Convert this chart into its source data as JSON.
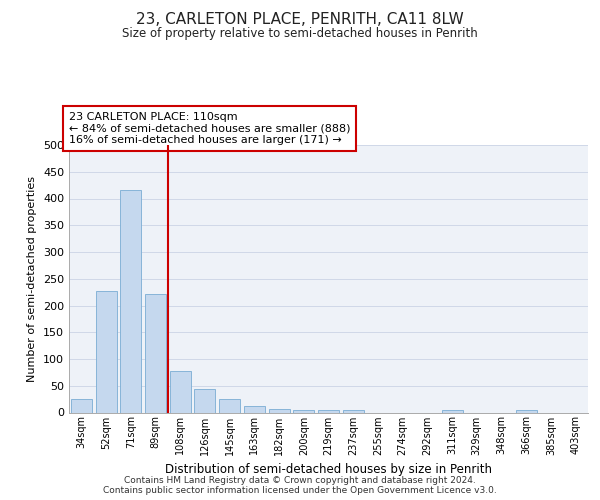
{
  "title": "23, CARLETON PLACE, PENRITH, CA11 8LW",
  "subtitle": "Size of property relative to semi-detached houses in Penrith",
  "xlabel": "Distribution of semi-detached houses by size in Penrith",
  "ylabel": "Number of semi-detached properties",
  "categories": [
    "34sqm",
    "52sqm",
    "71sqm",
    "89sqm",
    "108sqm",
    "126sqm",
    "145sqm",
    "163sqm",
    "182sqm",
    "200sqm",
    "219sqm",
    "237sqm",
    "255sqm",
    "274sqm",
    "292sqm",
    "311sqm",
    "329sqm",
    "348sqm",
    "366sqm",
    "385sqm",
    "403sqm"
  ],
  "values": [
    25,
    228,
    415,
    222,
    77,
    44,
    25,
    12,
    7,
    5,
    5,
    5,
    0,
    0,
    0,
    5,
    0,
    0,
    5,
    0,
    0
  ],
  "bar_color": "#c5d8ee",
  "bar_edge_color": "#7aadd4",
  "red_line_x": 3.5,
  "annotation_text_line1": "23 CARLETON PLACE: 110sqm",
  "annotation_text_line2": "← 84% of semi-detached houses are smaller (888)",
  "annotation_text_line3": "16% of semi-detached houses are larger (171) →",
  "annotation_box_facecolor": "#ffffff",
  "annotation_box_edgecolor": "#cc0000",
  "red_line_color": "#cc0000",
  "ylim": [
    0,
    500
  ],
  "yticks": [
    0,
    50,
    100,
    150,
    200,
    250,
    300,
    350,
    400,
    450,
    500
  ],
  "footer_line1": "Contains HM Land Registry data © Crown copyright and database right 2024.",
  "footer_line2": "Contains public sector information licensed under the Open Government Licence v3.0.",
  "grid_color": "#d0d8e8",
  "bg_color": "#eef2f8"
}
